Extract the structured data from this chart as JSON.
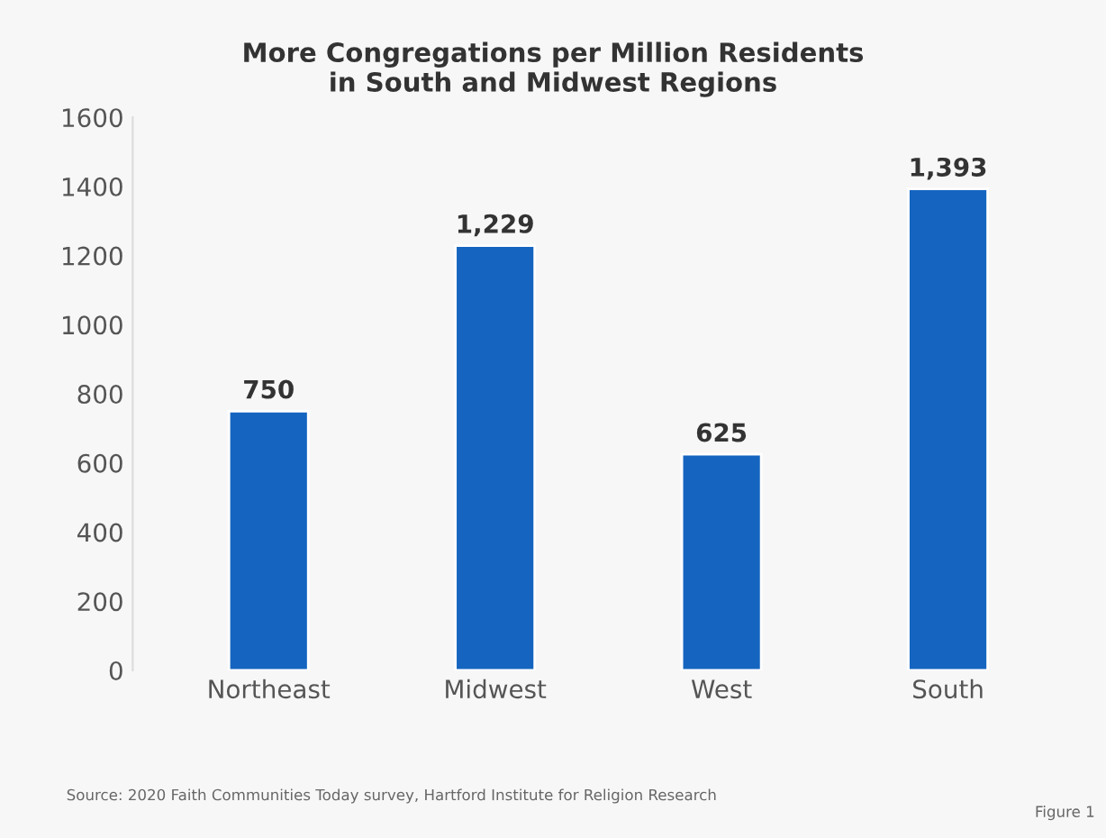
{
  "chart_data": {
    "type": "bar",
    "title": "More Congregations per Million Residents\nin South and Midwest Regions",
    "categories": [
      "Northeast",
      "Midwest",
      "West",
      "South"
    ],
    "values": [
      750,
      1229,
      625,
      1393
    ],
    "value_labels": [
      "750",
      "1,229",
      "625",
      "1,393"
    ],
    "color": "#1565c0",
    "ylim": [
      0,
      1600
    ],
    "yticks": [
      0,
      200,
      400,
      600,
      800,
      1000,
      1200,
      1400,
      1600
    ],
    "grid": false,
    "annotations": [
      "Source: 2020 Faith Communities Today survey, Hartford Institute for Religion Research",
      "Figure 1"
    ]
  }
}
